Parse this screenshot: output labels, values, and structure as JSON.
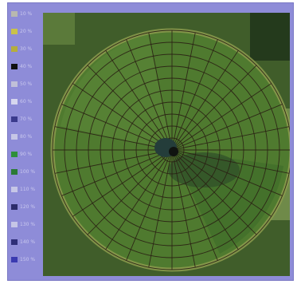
{
  "legend": {
    "items": [
      {
        "label": "10 %",
        "color": "#b8b8b0"
      },
      {
        "label": "20 %",
        "color": "#c9c24a"
      },
      {
        "label": "30 %",
        "color": "#b5ad3c"
      },
      {
        "label": "40 %",
        "color": "#101010"
      },
      {
        "label": "50 %",
        "color": "#c0c0d8"
      },
      {
        "label": "60 %",
        "color": "#d6d6ee"
      },
      {
        "label": "70 %",
        "color": "#3a3a8c"
      },
      {
        "label": "80 %",
        "color": "#c6c6e6"
      },
      {
        "label": "90 %",
        "color": "#2f8f3a"
      },
      {
        "label": "100 %",
        "color": "#2a7a34"
      },
      {
        "label": "110 %",
        "color": "#c6c6e6"
      },
      {
        "label": "120 %",
        "color": "#2c2c6a"
      },
      {
        "label": "130 %",
        "color": "#c6c6e6"
      },
      {
        "label": "140 %",
        "color": "#2e2e78"
      },
      {
        "label": "150 %",
        "color": "#3a3ab0"
      }
    ]
  },
  "map": {
    "colors": {
      "background": "#405d2a",
      "field": "#4f7a2f",
      "field_light": "#8c9b4e",
      "grid": "#2a2014",
      "pivot": "#101410"
    },
    "rings": 10,
    "spokes": 32
  }
}
